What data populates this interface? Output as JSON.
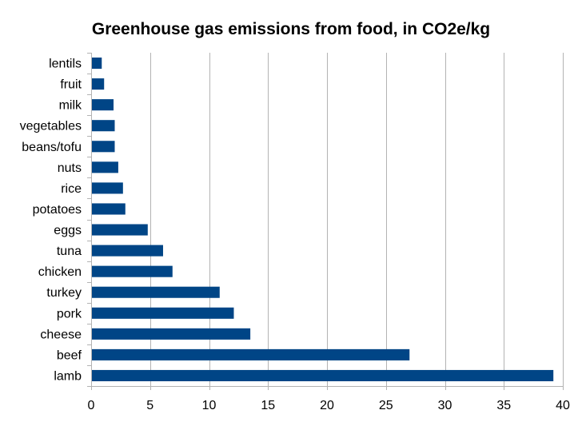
{
  "chart_data": {
    "type": "bar",
    "orientation": "horizontal",
    "title": "Greenhouse gas emissions from food, in CO2e/kg",
    "xlabel": "",
    "ylabel": "",
    "categories": [
      "lentils",
      "fruit",
      "milk",
      "vegetables",
      "beans/tofu",
      "nuts",
      "rice",
      "potatoes",
      "eggs",
      "tuna",
      "chicken",
      "turkey",
      "pork",
      "cheese",
      "beef",
      "lamb"
    ],
    "values": [
      0.9,
      1.1,
      1.9,
      2.0,
      2.0,
      2.3,
      2.7,
      2.9,
      4.8,
      6.1,
      6.9,
      10.9,
      12.1,
      13.5,
      27.0,
      39.2
    ],
    "xlim": [
      0,
      40
    ],
    "xticks": [
      0,
      5,
      10,
      15,
      20,
      25,
      30,
      35,
      40
    ],
    "grid": "vertical",
    "legend": "none",
    "colors": {
      "bar": "#004586",
      "grid": "#b3b3b3",
      "axis": "#b3b3b3"
    }
  }
}
